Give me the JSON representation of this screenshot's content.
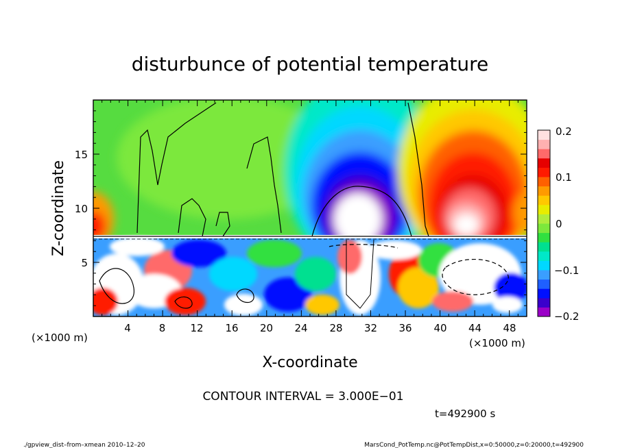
{
  "chart_data": {
    "type": "heatmap",
    "title": "disturbunce of potential temperature",
    "xlabel": "X-coordinate",
    "ylabel": "Z-coordinate",
    "x_unit": "(×1000 m)",
    "y_unit": "(×1000 m)",
    "xlim": [
      0,
      50
    ],
    "ylim": [
      0,
      20
    ],
    "x_ticks": [
      "4",
      "8",
      "12",
      "16",
      "20",
      "24",
      "28",
      "32",
      "36",
      "40",
      "44",
      "48"
    ],
    "y_ticks": [
      "5",
      "10",
      "15"
    ],
    "colorbar": {
      "range": [
        -0.2,
        0.2
      ],
      "tick_labels": [
        "0.2",
        "0.1",
        "0",
        "−0.1",
        "−0.2"
      ],
      "colors": [
        "#9B00C8",
        "#3A00CC",
        "#0010FF",
        "#1F60FF",
        "#3A9EFF",
        "#00D8FF",
        "#00E8C8",
        "#00E090",
        "#30E040",
        "#7CE83C",
        "#B0EC3C",
        "#E8EC00",
        "#FFC800",
        "#FF9A00",
        "#FF6000",
        "#FF1A00",
        "#E60000",
        "#FF6A6A",
        "#FFB0B0",
        "#FFE0E0"
      ]
    },
    "contour_interval": "CONTOUR INTERVAL = 3.000E−01",
    "time_label": "t=492900 s",
    "features": [
      {
        "type": "cold_anomaly",
        "x": 30,
        "z": 11.5,
        "value": -0.2
      },
      {
        "type": "warm_anomaly",
        "x": 43,
        "z": 11.5,
        "value": 0.2
      },
      {
        "type": "warm_edge",
        "x": 0.5,
        "z": 10,
        "value": 0.1
      }
    ]
  },
  "footer": {
    "left": "./gpview_dist–from–xmean  2010–12–20",
    "right": "MarsCond_PotTemp.nc@PotTempDist,x=0:50000,z=0:20000,t=492900"
  }
}
